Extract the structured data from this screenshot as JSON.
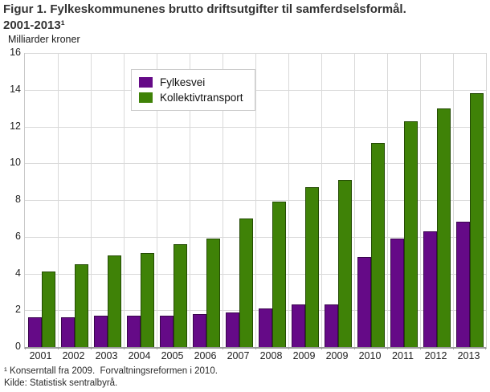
{
  "figure": {
    "title_line1": "Figur 1. Fylkeskommunenes brutto driftsutgifter til samferdselsformål.",
    "title_line2": "2001-2013¹",
    "y_axis_title": "Milliarder kroner",
    "footnote": "¹ Konserntall fra 2009.  Forvaltningsreformen i 2010.",
    "source": "Kilde: Statistisk sentralbyrå."
  },
  "colors": {
    "fylkesvei": "#650a87",
    "kollektivtransport": "#3f8207",
    "gridline": "#d9d9d9",
    "axis": "#9b9b9b",
    "title_text": "#333333"
  },
  "chart_data": {
    "type": "bar",
    "title": "Figur 1. Fylkeskommunenes brutto driftsutgifter til samferdselsformål. 2001-2013¹",
    "xlabel": "",
    "ylabel": "Milliarder kroner",
    "categories": [
      "2001",
      "2002",
      "2003",
      "2004",
      "2005",
      "2006",
      "2007",
      "2008",
      "2009",
      "2009",
      "2010",
      "2011",
      "2012",
      "2013"
    ],
    "series": [
      {
        "name": "Fylkesvei",
        "color": "#650a87",
        "values": [
          1.6,
          1.6,
          1.7,
          1.7,
          1.7,
          1.8,
          1.9,
          2.1,
          2.3,
          2.3,
          4.9,
          5.9,
          6.3,
          6.8
        ]
      },
      {
        "name": "Kollektivtransport",
        "color": "#3f8207",
        "values": [
          4.1,
          4.5,
          5.0,
          5.1,
          5.6,
          5.9,
          7.0,
          7.9,
          8.7,
          9.1,
          11.1,
          12.3,
          13.0,
          13.8
        ]
      }
    ],
    "ylim": [
      0,
      16
    ],
    "ytick_step": 2,
    "yticks": [
      0,
      2,
      4,
      6,
      8,
      10,
      12,
      14,
      16
    ],
    "grid": true,
    "legend_position": "top-left-inside",
    "footnotes": [
      "¹ Konserntall fra 2009.  Forvaltningsreformen i 2010.",
      "Kilde: Statistisk sentralbyrå."
    ]
  }
}
